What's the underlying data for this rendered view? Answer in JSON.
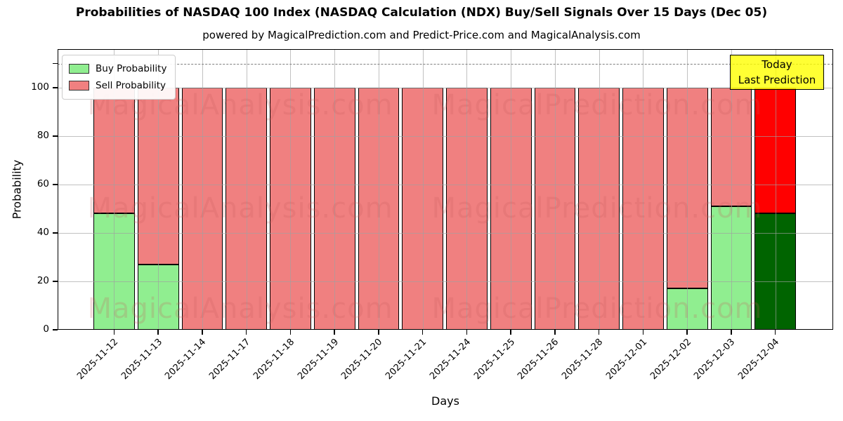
{
  "title": "Probabilities of NASDAQ 100 Index (NASDAQ Calculation (NDX) Buy/Sell Signals Over 15 Days (Dec 05)",
  "subtitle": "powered by MagicalPrediction.com and Predict-Price.com and MagicalAnalysis.com",
  "axes": {
    "xlabel": "Days",
    "ylabel": "Probability",
    "yticks": [
      0,
      20,
      40,
      60,
      80,
      100
    ],
    "unlabeled_ytick": 110,
    "ylim": [
      0,
      116
    ],
    "dashed_line_y": 110,
    "grid": true
  },
  "legend": {
    "position": "upper-left",
    "items": [
      {
        "label": "Buy Probability",
        "color": "#90EE90"
      },
      {
        "label": "Sell Probability",
        "color": "#F08080"
      }
    ]
  },
  "annotation": {
    "line1": "Today",
    "line2": "Last Prediction",
    "bg_color": "#FFFF00"
  },
  "watermarks": {
    "left_text": "MagicalAnalysis.com",
    "right_text": "MagicalPrediction.com"
  },
  "chart_data": {
    "type": "bar",
    "stacked": true,
    "categories": [
      "2025-11-12",
      "2025-11-13",
      "2025-11-14",
      "2025-11-17",
      "2025-11-18",
      "2025-11-19",
      "2025-11-20",
      "2025-11-21",
      "2025-11-24",
      "2025-11-25",
      "2025-11-26",
      "2025-11-28",
      "2025-12-01",
      "2025-12-02",
      "2025-12-03",
      "2025-12-04"
    ],
    "series": [
      {
        "name": "Buy Probability",
        "values": [
          48,
          27,
          0,
          0,
          0,
          0,
          0,
          0,
          0,
          0,
          0,
          0,
          0,
          17,
          51,
          48
        ]
      },
      {
        "name": "Sell Probability",
        "values": [
          52,
          73,
          100,
          100,
          100,
          100,
          100,
          100,
          100,
          100,
          100,
          100,
          100,
          83,
          49,
          52
        ]
      }
    ],
    "today_index": 15,
    "colors": {
      "buy": "#90EE90",
      "sell": "#F08080",
      "today_buy": "#006400",
      "today_sell": "#FF0000",
      "bar_edge": "#000000"
    },
    "title": "Probabilities of NASDAQ 100 Index (NASDAQ Calculation (NDX) Buy/Sell Signals Over 15 Days (Dec 05)",
    "xlabel": "Days",
    "ylabel": "Probability"
  }
}
